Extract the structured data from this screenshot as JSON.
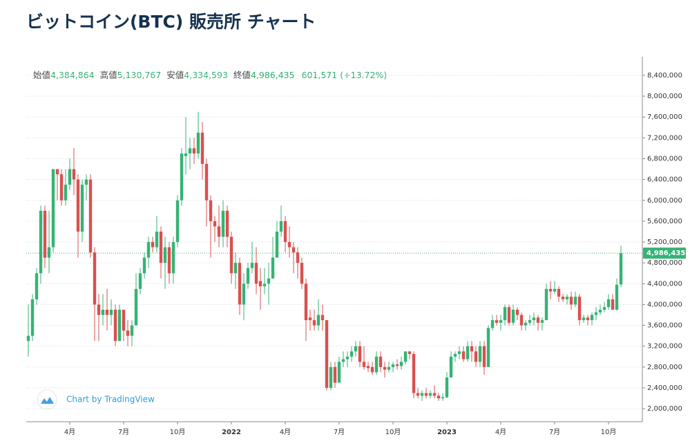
{
  "title": "ビットコイン(BTC) 販売所 チャート",
  "chart_data": {
    "type": "candlestick",
    "ohlc_legend": {
      "open_label": "始値",
      "open": "4,384,864",
      "high_label": "高値",
      "high": "5,130,767",
      "low_label": "安値",
      "low": "4,334,593",
      "close_label": "終値",
      "close": "4,986,435",
      "change": "601,571",
      "change_pct": "(+13.72%)"
    },
    "watermark": "Chart by TradingView",
    "up_color": "#35b374",
    "down_color": "#d9504f",
    "ylim": [
      1750000,
      8625000
    ],
    "yticks": [
      {
        "value": 2000000,
        "label": "2,000,000"
      },
      {
        "value": 2400000,
        "label": "2,400,000"
      },
      {
        "value": 2800000,
        "label": "2,800,000"
      },
      {
        "value": 3200000,
        "label": "3,200,000"
      },
      {
        "value": 3600000,
        "label": "3,600,000"
      },
      {
        "value": 4000000,
        "label": "4,000,000"
      },
      {
        "value": 4400000,
        "label": "4,400,000"
      },
      {
        "value": 4800000,
        "label": "4,800,000"
      },
      {
        "value": 5200000,
        "label": "5,200,000"
      },
      {
        "value": 5600000,
        "label": "5,600,000"
      },
      {
        "value": 6000000,
        "label": "6,000,000"
      },
      {
        "value": 6400000,
        "label": "6,400,000"
      },
      {
        "value": 6800000,
        "label": "6,800,000"
      },
      {
        "value": 7200000,
        "label": "7,200,000"
      },
      {
        "value": 7600000,
        "label": "7,600,000"
      },
      {
        "value": 8000000,
        "label": "8,000,000"
      },
      {
        "value": 8400000,
        "label": "8,400,000"
      }
    ],
    "grid": true,
    "categories": [
      null,
      null,
      null,
      null,
      null,
      null,
      null,
      null,
      null,
      null,
      "4月",
      null,
      null,
      null,
      null,
      null,
      null,
      null,
      null,
      null,
      null,
      null,
      null,
      "7月",
      null,
      null,
      null,
      null,
      null,
      null,
      null,
      null,
      null,
      null,
      null,
      null,
      "10月",
      null,
      null,
      null,
      null,
      null,
      null,
      null,
      null,
      null,
      null,
      null,
      null,
      "2022",
      null,
      null,
      null,
      null,
      null,
      null,
      null,
      null,
      null,
      null,
      null,
      null,
      "4月",
      null,
      null,
      null,
      null,
      null,
      null,
      null,
      null,
      null,
      null,
      null,
      null,
      "7月",
      null,
      null,
      null,
      null,
      null,
      null,
      null,
      null,
      null,
      null,
      null,
      null,
      "10月",
      null,
      null,
      null,
      null,
      null,
      null,
      null,
      null,
      null,
      null,
      null,
      null,
      "2023",
      null,
      null,
      null,
      null,
      null,
      null,
      null,
      null,
      null,
      null,
      null,
      null,
      "4月",
      null,
      null,
      null,
      null,
      null,
      null,
      null,
      null,
      null,
      null,
      null,
      null,
      "7月",
      null,
      null,
      null,
      null,
      null,
      null,
      null,
      null,
      null,
      null,
      null,
      null,
      "10月",
      null,
      null,
      null
    ],
    "ohlc": [
      [
        3300000.0,
        4000000.0,
        3000000.0,
        3400000.0
      ],
      [
        3400000.0,
        4200000.0,
        3300000.0,
        4100000.0
      ],
      [
        4100000.0,
        4700000.0,
        4000000.0,
        4600000.0
      ],
      [
        4600000.0,
        5900000.0,
        4400000.0,
        5800000.0
      ],
      [
        5800000.0,
        5900000.0,
        4700000.0,
        4900000.0
      ],
      [
        4900000.0,
        5800000.0,
        4600000.0,
        5100000.0
      ],
      [
        5100000.0,
        6600000.0,
        5000000.0,
        6600000.0
      ],
      [
        6600000.0,
        6600000.0,
        6000000.0,
        6500000.0
      ],
      [
        6500000.0,
        6600000.0,
        5900000.0,
        6000000.0
      ],
      [
        6000000.0,
        6600000.0,
        5900000.0,
        6300000.0
      ],
      [
        6300000.0,
        6800000.0,
        6200000.0,
        6600000.0
      ],
      [
        6600000.0,
        7000000.0,
        6100000.0,
        6400000.0
      ],
      [
        6400000.0,
        6500000.0,
        4900000.0,
        5400000.0
      ],
      [
        5400000.0,
        6400000.0,
        5200000.0,
        6300000.0
      ],
      [
        6300000.0,
        6500000.0,
        6000000.0,
        6400000.0
      ],
      [
        6400000.0,
        6500000.0,
        4900000.0,
        5000000.0
      ],
      [
        5000000.0,
        5100000.0,
        3300000.0,
        4000000.0
      ],
      [
        4000000.0,
        4200000.0,
        3300000.0,
        3800000.0
      ],
      [
        3800000.0,
        4200000.0,
        3600000.0,
        3900000.0
      ],
      [
        3900000.0,
        4300000.0,
        3500000.0,
        3800000.0
      ],
      [
        3800000.0,
        4100000.0,
        3600000.0,
        3900000.0
      ],
      [
        3900000.0,
        4000000.0,
        3200000.0,
        3300000.0
      ],
      [
        3300000.0,
        4000000.0,
        3300000.0,
        3900000.0
      ],
      [
        3900000.0,
        3900000.0,
        3300000.0,
        3500000.0
      ],
      [
        3500000.0,
        3700000.0,
        3200000.0,
        3400000.0
      ],
      [
        3400000.0,
        3700000.0,
        3200000.0,
        3600000.0
      ],
      [
        3600000.0,
        4600000.0,
        3600000.0,
        4300000.0
      ],
      [
        4300000.0,
        4700000.0,
        4200000.0,
        4600000.0
      ],
      [
        4600000.0,
        5000000.0,
        4500000.0,
        4900000.0
      ],
      [
        4900000.0,
        5300000.0,
        4700000.0,
        5200000.0
      ],
      [
        5200000.0,
        5300000.0,
        5000000.0,
        5100000.0
      ],
      [
        5100000.0,
        5700000.0,
        5000000.0,
        5400000.0
      ],
      [
        5400000.0,
        5500000.0,
        4500000.0,
        4800000.0
      ],
      [
        4800000.0,
        5300000.0,
        4300000.0,
        5100000.0
      ],
      [
        5100000.0,
        5200000.0,
        4400000.0,
        4600000.0
      ],
      [
        4600000.0,
        5300000.0,
        4400000.0,
        5200000.0
      ],
      [
        5200000.0,
        6100000.0,
        5100000.0,
        6000000.0
      ],
      [
        6000000.0,
        7000000.0,
        5900000.0,
        6900000.0
      ],
      [
        6850000.0,
        7600000.0,
        6500000.0,
        6900000.0
      ],
      [
        6900000.0,
        7200000.0,
        6600000.0,
        7000000.0
      ],
      [
        7000000.0,
        7200000.0,
        6700000.0,
        6900000.0
      ],
      [
        6900000.0,
        7700000.0,
        6800000.0,
        7300000.0
      ],
      [
        7300000.0,
        7500000.0,
        6400000.0,
        6700000.0
      ],
      [
        6700000.0,
        6800000.0,
        5500000.0,
        6000000.0
      ],
      [
        6000000.0,
        6100000.0,
        4900000.0,
        5600000.0
      ],
      [
        5600000.0,
        5700000.0,
        5200000.0,
        5500000.0
      ],
      [
        5500000.0,
        5900000.0,
        5100000.0,
        5300000.0
      ],
      [
        5300000.0,
        6000000.0,
        5100000.0,
        5800000.0
      ],
      [
        5800000.0,
        5900000.0,
        5100000.0,
        5300000.0
      ],
      [
        5300000.0,
        5400000.0,
        4400000.0,
        4600000.0
      ],
      [
        4600000.0,
        5000000.0,
        4300000.0,
        4800000.0
      ],
      [
        4800000.0,
        4900000.0,
        3800000.0,
        4000000.0
      ],
      [
        4000000.0,
        4600000.0,
        3700000.0,
        4400000.0
      ],
      [
        4400000.0,
        4800000.0,
        4300000.0,
        4700000.0
      ],
      [
        4700000.0,
        5200000.0,
        4600000.0,
        4800000.0
      ],
      [
        4800000.0,
        5100000.0,
        4200000.0,
        4400000.0
      ],
      [
        4450000.0,
        4700000.0,
        3900000.0,
        4350000.0
      ],
      [
        4350000.0,
        4700000.0,
        4200000.0,
        4400000.0
      ],
      [
        4400000.0,
        4800000.0,
        4000000.0,
        4500000.0
      ],
      [
        4500000.0,
        5300000.0,
        4500000.0,
        4900000.0
      ],
      [
        4900000.0,
        5600000.0,
        4900000.0,
        5400000.0
      ],
      [
        5400000.0,
        5900000.0,
        5300000.0,
        5600000.0
      ],
      [
        5600000.0,
        5700000.0,
        5000000.0,
        5200000.0
      ],
      [
        5200000.0,
        5500000.0,
        4900000.0,
        5100000.0
      ],
      [
        5100000.0,
        5200000.0,
        4600000.0,
        5000000.0
      ],
      [
        5000000.0,
        5100000.0,
        4500000.0,
        4800000.0
      ],
      [
        4800000.0,
        4900000.0,
        4300000.0,
        4400000.0
      ],
      [
        4400000.0,
        4500000.0,
        3300000.0,
        3700000.0
      ],
      [
        3750000.0,
        3900000.0,
        3500000.0,
        3700000.0
      ],
      [
        3700000.0,
        3900000.0,
        3500000.0,
        3600000.0
      ],
      [
        3600000.0,
        4100000.0,
        3500000.0,
        3800000.0
      ],
      [
        3800000.0,
        4000000.0,
        3500000.0,
        3700000.0
      ],
      [
        3700000.0,
        3700000.0,
        2350000.0,
        2400000.0
      ],
      [
        2400000.0,
        2900000.0,
        2350000.0,
        2800000.0
      ],
      [
        2800000.0,
        2900000.0,
        2400000.0,
        2500000.0
      ],
      [
        2500000.0,
        3000000.0,
        2500000.0,
        2900000.0
      ],
      [
        2900000.0,
        3100000.0,
        2800000.0,
        2950000.0
      ],
      [
        2950000.0,
        3100000.0,
        2800000.0,
        3000000.0
      ],
      [
        3000000.0,
        3200000.0,
        2900000.0,
        3100000.0
      ],
      [
        3100000.0,
        3300000.0,
        3000000.0,
        3200000.0
      ],
      [
        3200000.0,
        3300000.0,
        2800000.0,
        2900000.0
      ],
      [
        2900000.0,
        3200000.0,
        2750000.0,
        2800000.0
      ],
      [
        2820000.0,
        2900000.0,
        2700000.0,
        2780000.0
      ],
      [
        2800000.0,
        2900000.0,
        2650000.0,
        2700000.0
      ],
      [
        2700000.0,
        3100000.0,
        2650000.0,
        3000000.0
      ],
      [
        3000000.0,
        3100000.0,
        2700000.0,
        2800000.0
      ],
      [
        2800000.0,
        2900000.0,
        2600000.0,
        2750000.0
      ],
      [
        2750000.0,
        2900000.0,
        2700000.0,
        2800000.0
      ],
      [
        2800000.0,
        2900000.0,
        2700000.0,
        2850000.0
      ],
      [
        2850000.0,
        2950000.0,
        2750000.0,
        2820000.0
      ],
      [
        2820000.0,
        3000000.0,
        2750000.0,
        2900000.0
      ],
      [
        2900000.0,
        3100000.0,
        2850000.0,
        3100000.0
      ],
      [
        3100000.0,
        3100000.0,
        2950000.0,
        3050000.0
      ],
      [
        3050000.0,
        3100000.0,
        2200000.0,
        2300000.0
      ],
      [
        2300000.0,
        2400000.0,
        2200000.0,
        2250000.0
      ],
      [
        2250000.0,
        2350000.0,
        2150000.0,
        2300000.0
      ],
      [
        2300000.0,
        2400000.0,
        2200000.0,
        2250000.0
      ],
      [
        2250000.0,
        2350000.0,
        2200000.0,
        2300000.0
      ],
      [
        2300000.0,
        2450000.0,
        2200000.0,
        2250000.0
      ],
      [
        2250000.0,
        2300000.0,
        2150000.0,
        2200000.0
      ],
      [
        2200000.0,
        2300000.0,
        2150000.0,
        2220000.0
      ],
      [
        2220000.0,
        2700000.0,
        2200000.0,
        2600000.0
      ],
      [
        2600000.0,
        3100000.0,
        2600000.0,
        3000000.0
      ],
      [
        3000000.0,
        3100000.0,
        2900000.0,
        3050000.0
      ],
      [
        3050000.0,
        3200000.0,
        2950000.0,
        3100000.0
      ],
      [
        3100000.0,
        3200000.0,
        2900000.0,
        2950000.0
      ],
      [
        2950000.0,
        3300000.0,
        2900000.0,
        3200000.0
      ],
      [
        3200000.0,
        3300000.0,
        2900000.0,
        3100000.0
      ],
      [
        3100000.0,
        3200000.0,
        2800000.0,
        2900000.0
      ],
      [
        2900000.0,
        3300000.0,
        2800000.0,
        3200000.0
      ],
      [
        3200000.0,
        3300000.0,
        2650000.0,
        2800000.0
      ],
      [
        2800000.0,
        3600000.0,
        2800000.0,
        3550000.0
      ],
      [
        3550000.0,
        3800000.0,
        3500000.0,
        3700000.0
      ],
      [
        3700000.0,
        3800000.0,
        3600000.0,
        3650000.0
      ],
      [
        3650000.0,
        3800000.0,
        3500000.0,
        3700000.0
      ],
      [
        3700000.0,
        4000000.0,
        3600000.0,
        3950000.0
      ],
      [
        3950000.0,
        4000000.0,
        3600000.0,
        3650000.0
      ],
      [
        3650000.0,
        4000000.0,
        3600000.0,
        3900000.0
      ],
      [
        3900000.0,
        3950000.0,
        3700000.0,
        3800000.0
      ],
      [
        3800000.0,
        3850000.0,
        3500000.0,
        3600000.0
      ],
      [
        3600000.0,
        3700000.0,
        3500000.0,
        3650000.0
      ],
      [
        3650000.0,
        3800000.0,
        3600000.0,
        3700000.0
      ],
      [
        3700000.0,
        3850000.0,
        3600000.0,
        3750000.0
      ],
      [
        3750000.0,
        3800000.0,
        3500000.0,
        3650000.0
      ],
      [
        3650000.0,
        3750000.0,
        3500000.0,
        3700000.0
      ],
      [
        3700000.0,
        4400000.0,
        3700000.0,
        4300000.0
      ],
      [
        4300000.0,
        4450000.0,
        4100000.0,
        4250000.0
      ],
      [
        4250000.0,
        4450000.0,
        4200000.0,
        4300000.0
      ],
      [
        4300000.0,
        4350000.0,
        4050000.0,
        4150000.0
      ],
      [
        4150000.0,
        4200000.0,
        4050000.0,
        4100000.0
      ],
      [
        4100000.0,
        4200000.0,
        4000000.0,
        4150000.0
      ],
      [
        4150000.0,
        4250000.0,
        3900000.0,
        4000000.0
      ],
      [
        4000000.0,
        4250000.0,
        3950000.0,
        4150000.0
      ],
      [
        4150000.0,
        4200000.0,
        3600000.0,
        3700000.0
      ],
      [
        3700000.0,
        3800000.0,
        3650000.0,
        3750000.0
      ],
      [
        3750000.0,
        3800000.0,
        3600000.0,
        3700000.0
      ],
      [
        3700000.0,
        3850000.0,
        3600000.0,
        3800000.0
      ],
      [
        3800000.0,
        3950000.0,
        3700000.0,
        3850000.0
      ],
      [
        3850000.0,
        4000000.0,
        3800000.0,
        3900000.0
      ],
      [
        3900000.0,
        4050000.0,
        3850000.0,
        3950000.0
      ],
      [
        3950000.0,
        4200000.0,
        3900000.0,
        4100000.0
      ],
      [
        4100000.0,
        4200000.0,
        3900000.0,
        3900000.0
      ],
      [
        3900000.0,
        4500000.0,
        3880000.0,
        4380000.0
      ],
      [
        4384864,
        5130767,
        4334593,
        4986435
      ]
    ]
  }
}
